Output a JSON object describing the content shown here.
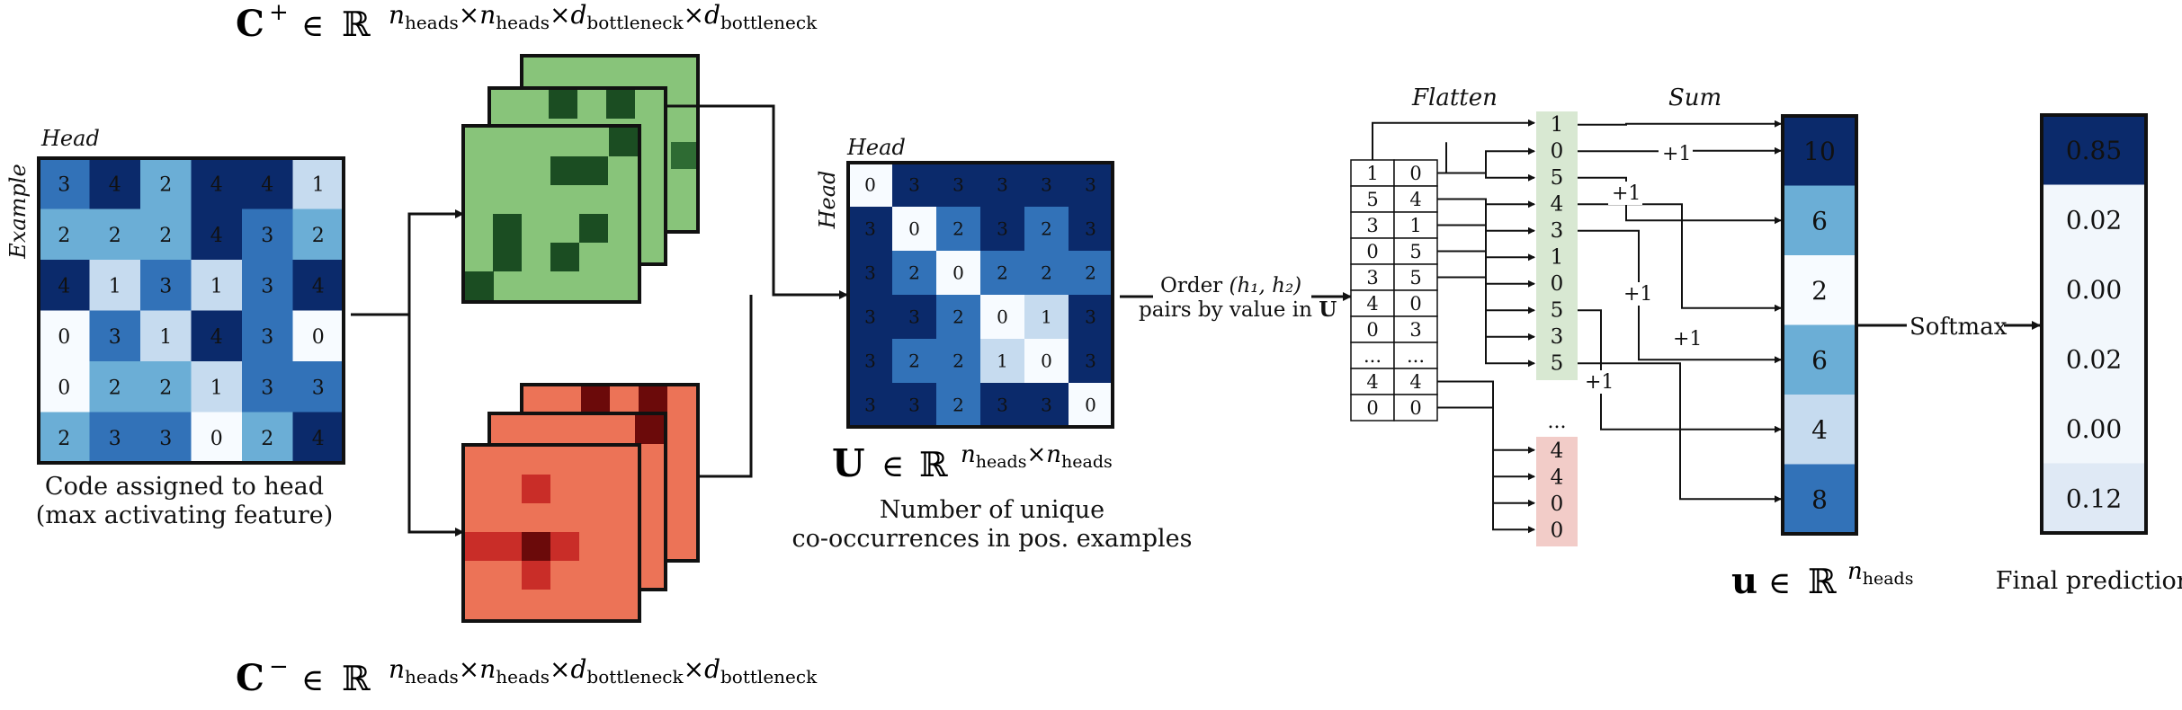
{
  "equations": {
    "c_plus": {
      "sym": "C",
      "sup": "+",
      "in": "∈",
      "field": "ℝ",
      "dims": [
        "n",
        "heads",
        "×",
        "n",
        "heads",
        "×",
        "d",
        "bottleneck",
        "×",
        "d",
        "bottleneck"
      ]
    },
    "c_minus": {
      "sym": "C",
      "sup": "−",
      "in": "∈",
      "field": "ℝ",
      "dims": [
        "n",
        "heads",
        "×",
        "n",
        "heads",
        "×",
        "d",
        "bottleneck",
        "×",
        "d",
        "bottleneck"
      ]
    },
    "u_matrix": {
      "sym": "U",
      "in": "∈",
      "field": "ℝ",
      "dims": [
        "n",
        "heads",
        "×",
        "n",
        "heads"
      ]
    },
    "u_vector": {
      "sym": "u",
      "in": "∈",
      "field": "ℝ",
      "dims": [
        "n",
        "heads"
      ]
    }
  },
  "code_matrix": {
    "head_label": "Head",
    "example_label": "Example",
    "values": [
      [
        3,
        4,
        2,
        4,
        4,
        1
      ],
      [
        2,
        2,
        2,
        4,
        3,
        2
      ],
      [
        4,
        1,
        3,
        1,
        3,
        4
      ],
      [
        0,
        3,
        1,
        4,
        3,
        0
      ],
      [
        0,
        2,
        2,
        1,
        3,
        3
      ],
      [
        2,
        3,
        3,
        0,
        2,
        4
      ]
    ],
    "caption_line1": "Code assigned to head",
    "caption_line2": "(max activating feature)"
  },
  "u_matrix": {
    "head_label": "Head",
    "row_label": "Head",
    "values": [
      [
        0,
        3,
        3,
        3,
        3,
        3
      ],
      [
        3,
        0,
        2,
        3,
        2,
        3
      ],
      [
        3,
        2,
        0,
        2,
        2,
        2
      ],
      [
        3,
        3,
        2,
        0,
        1,
        3
      ],
      [
        3,
        2,
        2,
        1,
        0,
        3
      ],
      [
        3,
        3,
        2,
        3,
        3,
        0
      ]
    ],
    "caption_line1": "Number of unique",
    "caption_line2": "co-occurrences in pos. examples"
  },
  "order_text": {
    "line1_prefix": "Order ",
    "line1_math": "(h₁, h₂)",
    "line2_prefix": "pairs by value in ",
    "line2_math": "U"
  },
  "flatten": {
    "label": "Flatten",
    "pairs": [
      [
        "1",
        "0"
      ],
      [
        "5",
        "4"
      ],
      [
        "3",
        "1"
      ],
      [
        "0",
        "5"
      ],
      [
        "3",
        "5"
      ],
      [
        "4",
        "0"
      ],
      [
        "0",
        "3"
      ],
      [
        "...",
        "..."
      ],
      [
        "4",
        "4"
      ],
      [
        "0",
        "0"
      ]
    ],
    "green_values": [
      "1",
      "0",
      "5",
      "4",
      "3",
      "1",
      "0",
      "5",
      "3",
      "5"
    ],
    "ellipsis": "...",
    "red_values": [
      "4",
      "4",
      "0",
      "0"
    ]
  },
  "sum": {
    "label": "Sum",
    "plus_labels": [
      "+1",
      "+1",
      "+1",
      "+1",
      "+1"
    ]
  },
  "u_vector": {
    "values": [
      10,
      6,
      2,
      6,
      4,
      8
    ]
  },
  "softmax_label": "Softmax",
  "prediction": {
    "values": [
      "0.85",
      "0.02",
      "0.00",
      "0.02",
      "0.00",
      "0.12"
    ],
    "caption": "Final prediction"
  },
  "colors": {
    "blue": [
      "#f7fbff",
      "#c6dbef",
      "#6baed6",
      "#3272b8",
      "#0b2a6b"
    ],
    "pred_blue": [
      "#0b2a6b",
      "#f4f9fd"
    ],
    "green_fill": "#88c47a",
    "green_dark": "#1b4d22",
    "red_fill": "#ec7357",
    "red_mid": "#c92d28",
    "red_dark": "#6b0a0a",
    "flat_green": "#d8e8d2",
    "flat_red": "#f2ccc8"
  }
}
